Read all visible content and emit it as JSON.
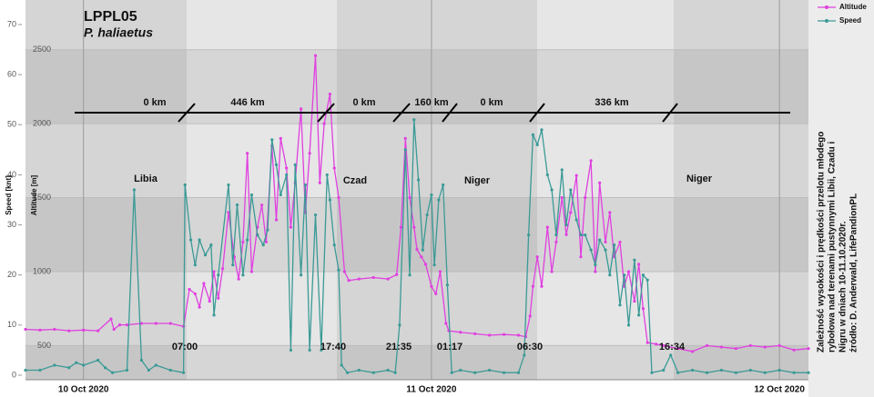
{
  "chart_data": {
    "type": "line",
    "title": "LPPL05",
    "subtitle": "P. haliaetus",
    "ylabel": "Speed [knt]",
    "y2label": "Altitude [m]",
    "xlim": [
      -4,
      50
    ],
    "xticks": [
      {
        "value": 0,
        "label": "10 Oct 2020"
      },
      {
        "value": 24,
        "label": "11 Oct 2020"
      },
      {
        "value": 48,
        "label": "12 Oct 2020"
      }
    ],
    "ylim": [
      0,
      70
    ],
    "yticks": [
      0,
      10,
      20,
      30,
      40,
      50,
      60,
      70
    ],
    "y2lim": [
      300,
      2670
    ],
    "y2ticks": [
      500,
      1000,
      1500,
      2000,
      2500
    ],
    "grid": true,
    "legend": "top-right",
    "series": [
      {
        "name": "Altitude",
        "color": "#e040e0",
        "axis": "y2",
        "x": [
          -4,
          -3,
          -2,
          -1,
          0,
          1,
          1.9,
          2.1,
          2.5,
          3,
          4,
          5,
          6,
          6.9,
          7.3,
          7.7,
          8,
          8.3,
          8.7,
          9,
          9.3,
          9.6,
          10,
          10.4,
          10.7,
          11,
          11.3,
          11.6,
          12,
          12.3,
          12.6,
          13,
          13.3,
          13.6,
          14,
          14.3,
          14.6,
          15,
          15.3,
          15.6,
          16,
          16.3,
          16.6,
          17,
          17.3,
          17.6,
          18,
          18.3,
          19,
          20,
          21,
          21.6,
          21.9,
          22.2,
          22.5,
          22.8,
          23,
          23.3,
          23.6,
          24,
          24.3,
          24.6,
          25,
          25.2,
          26,
          27,
          28,
          29,
          30,
          30.5,
          30.8,
          31,
          31.3,
          31.6,
          32,
          32.3,
          32.6,
          33,
          33.3,
          33.6,
          34,
          34.3,
          34.6,
          35,
          35.3,
          35.6,
          36,
          36.3,
          36.6,
          37,
          37.3,
          37.6,
          38,
          38.3,
          38.6,
          38.9,
          39.5,
          40,
          41,
          42,
          43,
          44,
          45,
          46,
          47,
          48,
          49,
          50
        ],
        "values": [
          610,
          605,
          610,
          600,
          605,
          600,
          680,
          610,
          640,
          640,
          650,
          650,
          650,
          630,
          880,
          850,
          760,
          920,
          800,
          1000,
          820,
          1020,
          1400,
          1100,
          950,
          1200,
          1800,
          1000,
          1300,
          1450,
          1200,
          1850,
          1350,
          1900,
          1700,
          1300,
          1600,
          2100,
          1400,
          1800,
          2460,
          1600,
          2000,
          2200,
          1700,
          1500,
          1000,
          940,
          950,
          960,
          950,
          980,
          1300,
          1900,
          1500,
          1300,
          1150,
          1100,
          1050,
          900,
          850,
          1000,
          650,
          600,
          590,
          580,
          570,
          575,
          570,
          560,
          700,
          900,
          1100,
          900,
          1300,
          1000,
          1200,
          1500,
          1250,
          1400,
          1650,
          1100,
          1500,
          1750,
          1000,
          1600,
          1200,
          1400,
          1100,
          1200,
          900,
          1000,
          800,
          1050,
          750,
          520,
          510,
          500,
          480,
          460,
          500,
          490,
          480,
          500,
          490,
          500,
          470,
          480
        ]
      },
      {
        "name": "Speed",
        "color": "#3a9a96",
        "axis": "y",
        "x": [
          -4,
          -3,
          -2,
          -1,
          -0.5,
          0,
          1,
          1.5,
          2,
          3,
          3.5,
          4,
          4.5,
          5,
          6,
          6.9,
          7,
          7.4,
          7.7,
          8,
          8.4,
          8.8,
          9,
          9.3,
          10,
          10.3,
          10.6,
          11,
          11.3,
          11.6,
          12,
          12.4,
          12.7,
          13,
          13.3,
          13.6,
          14,
          14.3,
          14.6,
          15,
          15.3,
          15.6,
          16,
          16.4,
          16.8,
          17,
          17.3,
          17.6,
          17.8,
          18.2,
          19,
          20,
          21,
          21.5,
          21.8,
          22.2,
          22.5,
          22.8,
          23.1,
          23.4,
          23.7,
          24,
          24.2,
          24.5,
          24.8,
          25.1,
          25.4,
          26,
          27,
          28,
          29,
          30,
          30.4,
          30.7,
          31,
          31.3,
          31.6,
          32,
          32.3,
          32.6,
          33,
          33.3,
          33.6,
          34,
          34.3,
          34.6,
          35,
          35.3,
          35.6,
          36,
          36.3,
          36.6,
          37,
          37.3,
          37.6,
          38,
          38.3,
          38.6,
          38.9,
          39.2,
          40,
          40.5,
          41,
          42,
          43,
          44,
          45,
          46,
          47,
          48,
          49,
          50
        ],
        "values": [
          1,
          1,
          2,
          1.5,
          2.5,
          2,
          3,
          1.5,
          0.5,
          1,
          37,
          3,
          1,
          2,
          1,
          0.5,
          38,
          27,
          22,
          27,
          24,
          26,
          12,
          20,
          38,
          22,
          34,
          20,
          27,
          36,
          28,
          26,
          29,
          47,
          42,
          36,
          40,
          5,
          42,
          20,
          38,
          5,
          32,
          5,
          40,
          35,
          26,
          21,
          2,
          0.5,
          1,
          0.5,
          1,
          0.5,
          10,
          45,
          20,
          51,
          39,
          25,
          32,
          36,
          22,
          35,
          38,
          18,
          0.5,
          1,
          0.5,
          1,
          0.5,
          0.5,
          4,
          28,
          48,
          46,
          49,
          40,
          37,
          28,
          41,
          30,
          37,
          31,
          28,
          28,
          25,
          22,
          27,
          25,
          20,
          26,
          14,
          20,
          10,
          23,
          12,
          20,
          19,
          0.5,
          1,
          4,
          0.5,
          1,
          0.5,
          1,
          0.5,
          1,
          0.5,
          1,
          0.5,
          0.5
        ]
      }
    ],
    "annotations": [
      "0 km",
      "446 km",
      "0 km",
      "160 km",
      "0 km",
      "336 km",
      "Libia",
      "Czad",
      "Niger",
      "Niger",
      "07:00",
      "17:40",
      "21:35",
      "01:17",
      "06:30",
      "16:34"
    ],
    "side_note": [
      "Zależność wysokości i prędkości przelotu młodego",
      "rybołowa nad terenami pustynnymi Libii, Czadu i",
      "Nigru w dniach 10-11.10.2020r.",
      "źródło: D. Anderwald, LifePandionPL"
    ]
  }
}
